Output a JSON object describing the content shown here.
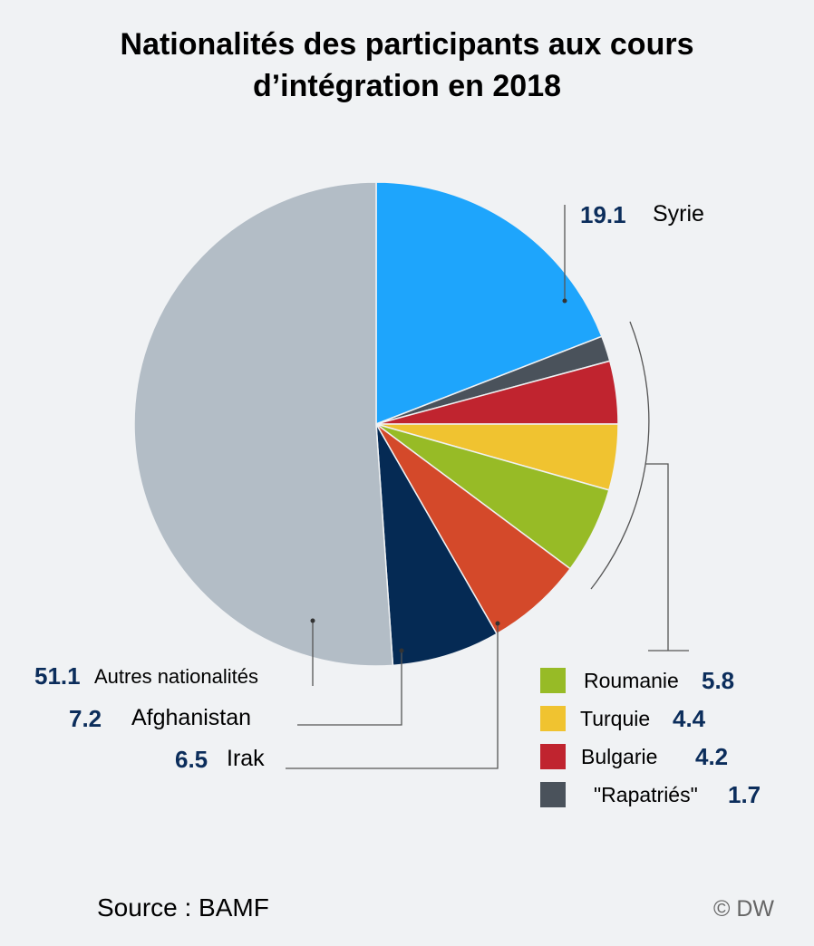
{
  "chart_data": {
    "type": "pie",
    "title": "Nationalités des participants aux cours d’intégration en 2018",
    "title_lines": [
      "Nationalités des participants aux cours",
      "d’intégration en 2018"
    ],
    "start": "top, clockwise",
    "slices": [
      {
        "label": "Syrie",
        "value": 19.1,
        "display": "19.1",
        "color": "#1ea5fc"
      },
      {
        "label": "\"Rapatriés\"",
        "value": 1.7,
        "display": "1.7",
        "color": "#4a525b"
      },
      {
        "label": "Bulgarie",
        "value": 4.2,
        "display": "4.2",
        "color": "#c0242f"
      },
      {
        "label": "Turquie",
        "value": 4.4,
        "display": "4.4",
        "color": "#f0c330"
      },
      {
        "label": "Roumanie",
        "value": 5.8,
        "display": "5.8",
        "color": "#97bb26"
      },
      {
        "label": "Irak",
        "value": 6.5,
        "display": "6.5",
        "color": "#d4492a"
      },
      {
        "label": "Afghanistan",
        "value": 7.2,
        "display": "7.2",
        "color": "#052a54"
      },
      {
        "label": "Autres nationalités",
        "value": 51.1,
        "display": "51.1",
        "color": "#b3bdc6"
      }
    ],
    "legend_placement": "bottom-right"
  },
  "footer": {
    "source": "Source : BAMF",
    "credit": "© DW"
  }
}
